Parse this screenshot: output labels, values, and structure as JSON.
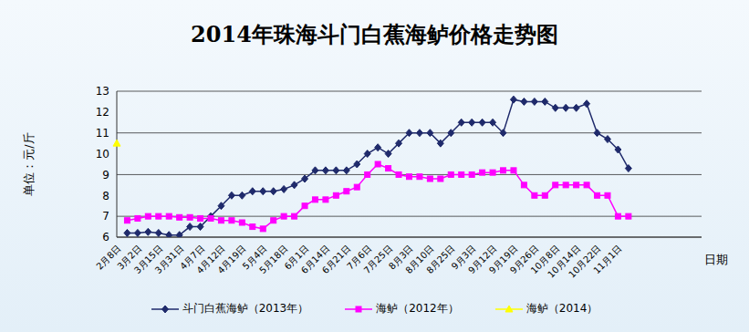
{
  "chart_data": {
    "type": "line",
    "title": "2014年珠海斗门白蕉海鲈价格走势图",
    "y_label": "单位：元/斤",
    "x_label": "日期",
    "categories": [
      "2月8日",
      null,
      "3月2日",
      null,
      "3月15日",
      null,
      "3月31日",
      null,
      "4月7日",
      null,
      "4月12日",
      null,
      "4月19日",
      null,
      "5月4日",
      null,
      "5月18日",
      null,
      "6月1日",
      null,
      "6月14日",
      null,
      "6月21日",
      null,
      "7月6日",
      null,
      "7月25日",
      null,
      "8月3日",
      null,
      "8月10日",
      null,
      "8月25日",
      null,
      "9月3日",
      null,
      "9月12日",
      null,
      "9月19日",
      null,
      "9月26日",
      null,
      "10月8日",
      null,
      "10月14日",
      null,
      "10月22日",
      null,
      "11月1日",
      null,
      null,
      null,
      null,
      null,
      null,
      null,
      null
    ],
    "series": [
      {
        "name": "斗门白蕉海鲈（2013年）",
        "color": "#1f2a6b",
        "marker": "diamond",
        "values": [
          null,
          6.2,
          6.2,
          6.25,
          6.2,
          6.1,
          6.1,
          6.5,
          6.5,
          7.0,
          7.5,
          8.0,
          8.0,
          8.2,
          8.2,
          8.2,
          8.3,
          8.5,
          8.8,
          9.2,
          9.2,
          9.2,
          9.2,
          9.5,
          10.0,
          10.3,
          10.0,
          10.5,
          11.0,
          11.0,
          11.0,
          10.5,
          11.0,
          11.5,
          11.5,
          11.5,
          11.5,
          11.0,
          12.6,
          12.5,
          12.5,
          12.5,
          12.2,
          12.2,
          12.2,
          12.4,
          11.0,
          10.7,
          10.2,
          9.3,
          null,
          null,
          null,
          null,
          null,
          null,
          null
        ]
      },
      {
        "name": "海鲈（2012年）",
        "color": "#ff00ff",
        "marker": "square",
        "values": [
          null,
          6.8,
          6.9,
          7.0,
          7.0,
          7.0,
          6.95,
          6.95,
          6.9,
          6.9,
          6.8,
          6.8,
          6.7,
          6.5,
          6.4,
          6.8,
          7.0,
          7.0,
          7.5,
          7.8,
          7.8,
          8.0,
          8.2,
          8.4,
          9.0,
          9.5,
          9.3,
          9.0,
          8.9,
          8.9,
          8.8,
          8.8,
          9.0,
          9.0,
          9.0,
          9.1,
          9.1,
          9.2,
          9.2,
          8.5,
          8.0,
          8.0,
          8.5,
          8.5,
          8.5,
          8.5,
          8.0,
          8.0,
          7.0,
          7.0,
          null,
          null,
          null,
          null,
          null,
          null,
          null
        ]
      },
      {
        "name": "海鲈（2014）",
        "color": "#ffff00",
        "marker": "triangle",
        "values": [
          10.5,
          null,
          null,
          null,
          null,
          null,
          null,
          null,
          null,
          null,
          null,
          null,
          null,
          null,
          null,
          null,
          null,
          null,
          null,
          null,
          null,
          null,
          null,
          null,
          null,
          null,
          null,
          null,
          null,
          null,
          null,
          null,
          null,
          null,
          null,
          null,
          null,
          null,
          null,
          null,
          null,
          null,
          null,
          null,
          null,
          null,
          null,
          null,
          null,
          null,
          null,
          null,
          null,
          null,
          null,
          null,
          null
        ]
      }
    ],
    "ylim": [
      6,
      13
    ],
    "yticks": [
      6,
      7,
      8,
      9,
      10,
      11,
      12,
      13
    ],
    "grid": true,
    "legend": "bottom"
  }
}
